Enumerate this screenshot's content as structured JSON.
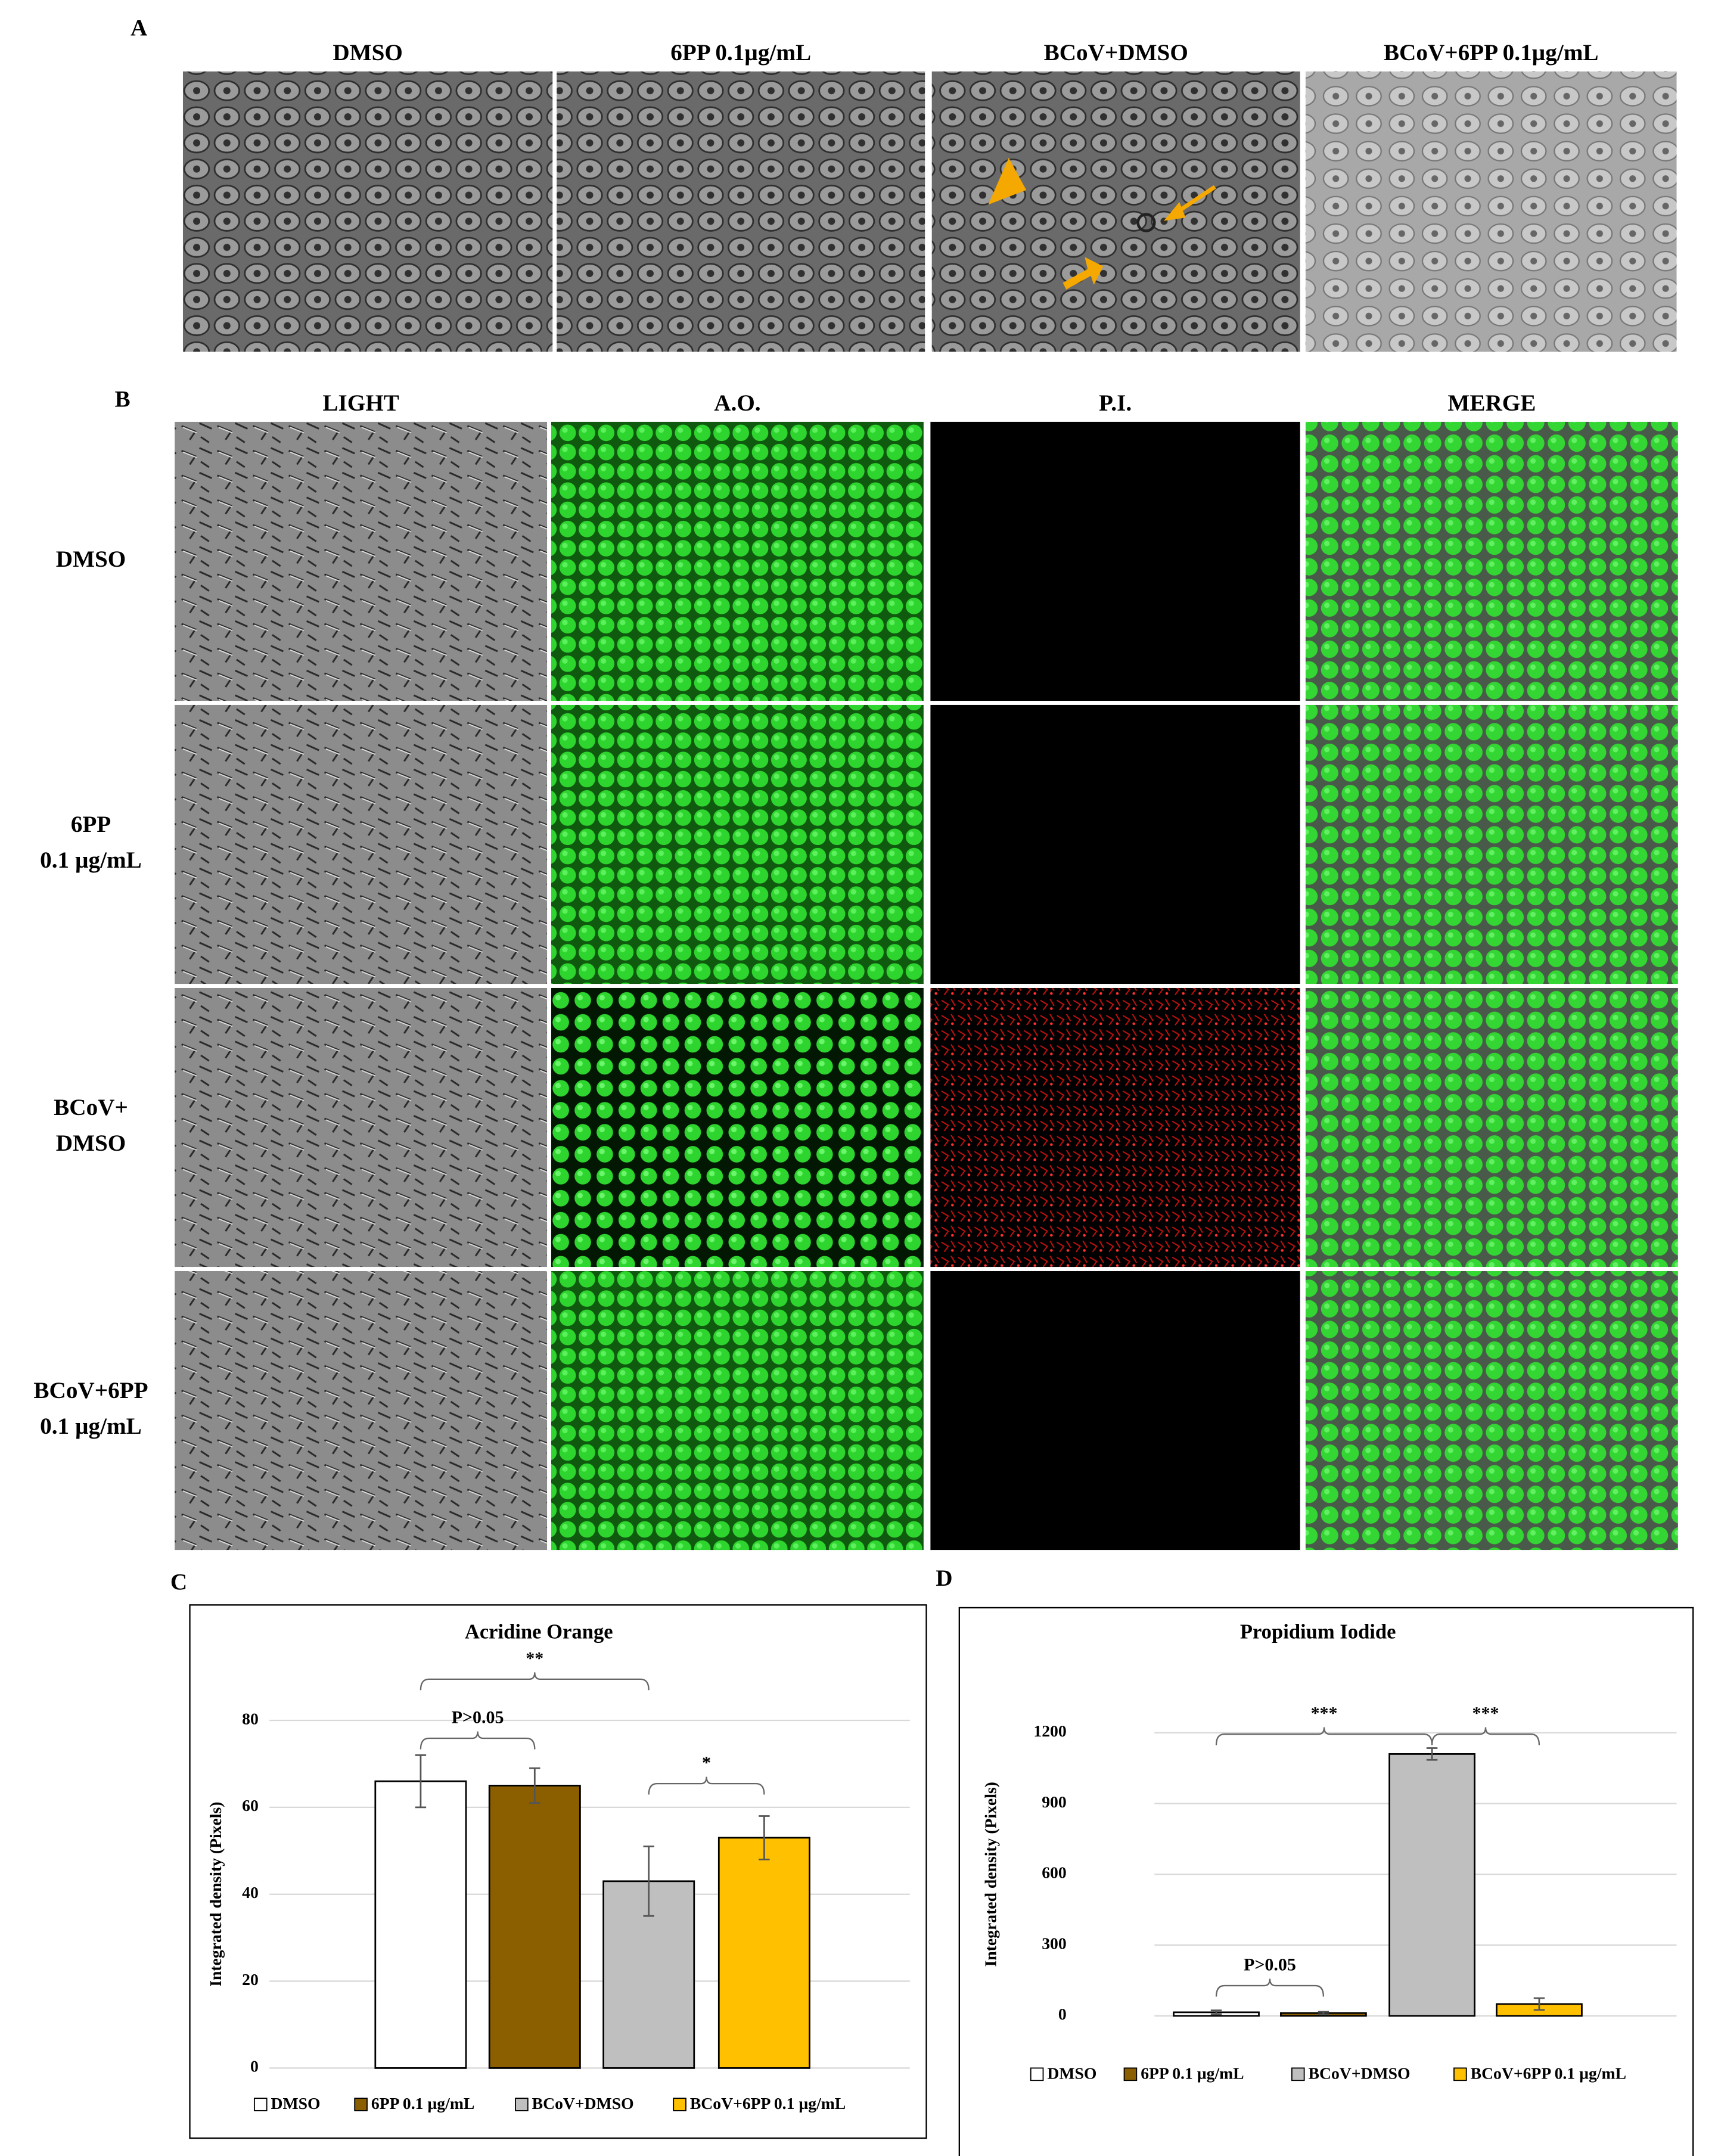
{
  "panels": {
    "a": {
      "label": "A",
      "columns": [
        "DMSO",
        "6PP 0.1µg/mL",
        "BCoV+DMSO",
        "BCoV+6PP 0.1µg/mL"
      ]
    },
    "b": {
      "label": "B",
      "columns": [
        "LIGHT",
        "A.O.",
        "P.I.",
        "MERGE"
      ],
      "rows": [
        [
          "DMSO"
        ],
        [
          "6PP",
          "0.1 µg/mL"
        ],
        [
          "BCoV+",
          "DMSO"
        ],
        [
          "BCoV+6PP",
          "0.1 µg/mL"
        ]
      ]
    },
    "c": {
      "label": "C"
    },
    "d": {
      "label": "D"
    }
  },
  "chart_data": [
    {
      "type": "bar",
      "title": "Acridine Orange",
      "y_label": "Integrated density (Pixels)",
      "categories": [
        "DMSO",
        "6PP 0.1 µg/mL",
        "BCoV+DMSO",
        "BCoV+6PP 0.1 µg/mL"
      ],
      "values": [
        66,
        65,
        43,
        53
      ],
      "errors": [
        6,
        4,
        8,
        5
      ],
      "colors": [
        "#ffffff",
        "#8b5e00",
        "#bfbfbf",
        "#ffc000"
      ],
      "ylim": [
        0,
        80
      ],
      "yticks": [
        0,
        20,
        40,
        60,
        80
      ],
      "grid": true,
      "annotations": [
        "**",
        "P>0.05",
        "*"
      ]
    },
    {
      "type": "bar",
      "title": "Propidium Iodide",
      "y_label": "Integrated density (Pixels)",
      "categories": [
        "DMSO",
        "6PP 0.1 µg/mL",
        "BCoV+DMSO",
        "BCoV+6PP 0.1 µg/mL"
      ],
      "values": [
        15,
        12,
        1110,
        50
      ],
      "errors": [
        8,
        5,
        25,
        25
      ],
      "colors": [
        "#ffffff",
        "#8b5e00",
        "#bfbfbf",
        "#ffc000"
      ],
      "ylim": [
        0,
        1200
      ],
      "yticks": [
        0,
        300,
        600,
        900,
        1200
      ],
      "grid": true,
      "annotations": [
        "***",
        "***",
        "P>0.05"
      ]
    }
  ]
}
